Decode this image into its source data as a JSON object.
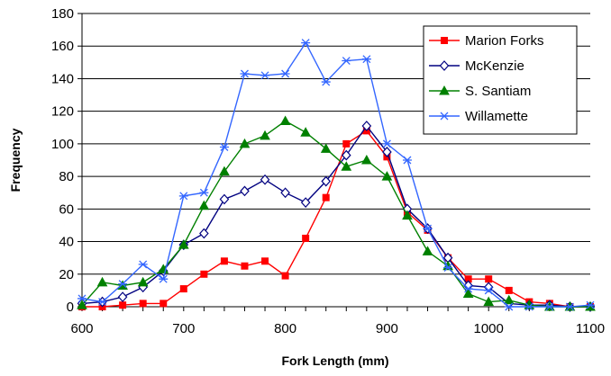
{
  "chart_data": {
    "type": "line",
    "title": "",
    "xlabel": "Fork Length (mm)",
    "ylabel": "Frequency",
    "xlim": [
      600,
      1100
    ],
    "ylim": [
      0,
      180
    ],
    "xticks": [
      600,
      700,
      800,
      900,
      1000,
      1100
    ],
    "yticks": [
      0,
      20,
      40,
      60,
      80,
      100,
      120,
      140,
      160,
      180
    ],
    "grid": "horizontal",
    "legend_position": "top-right",
    "x": [
      600,
      620,
      640,
      660,
      680,
      700,
      720,
      740,
      760,
      780,
      800,
      820,
      840,
      860,
      880,
      900,
      920,
      940,
      960,
      980,
      1000,
      1020,
      1040,
      1060,
      1080,
      1100
    ],
    "series": [
      {
        "name": "Marion Forks",
        "color": "#ff0000",
        "marker": "square",
        "values": [
          0,
          0,
          1,
          2,
          2,
          11,
          20,
          28,
          25,
          28,
          19,
          42,
          67,
          100,
          108,
          92,
          58,
          47,
          30,
          17,
          17,
          10,
          3,
          2,
          0,
          0
        ]
      },
      {
        "name": "McKenzie",
        "color": "#000080",
        "marker": "diamond",
        "values": [
          2,
          3,
          6,
          12,
          22,
          38,
          45,
          66,
          71,
          78,
          70,
          64,
          77,
          93,
          111,
          95,
          60,
          48,
          30,
          13,
          12,
          2,
          1,
          1,
          0,
          0
        ]
      },
      {
        "name": "S. Santiam",
        "color": "#008000",
        "marker": "triangle",
        "values": [
          1,
          15,
          13,
          15,
          23,
          38,
          62,
          83,
          100,
          105,
          114,
          107,
          97,
          86,
          90,
          80,
          56,
          34,
          25,
          8,
          3,
          4,
          1,
          0,
          0,
          0
        ]
      },
      {
        "name": "Willamette",
        "color": "#3366ff",
        "marker": "star",
        "values": [
          5,
          3,
          14,
          26,
          17,
          68,
          70,
          98,
          143,
          142,
          143,
          162,
          138,
          151,
          152,
          100,
          90,
          48,
          24,
          11,
          10,
          0,
          0,
          0,
          0,
          1
        ]
      }
    ]
  }
}
